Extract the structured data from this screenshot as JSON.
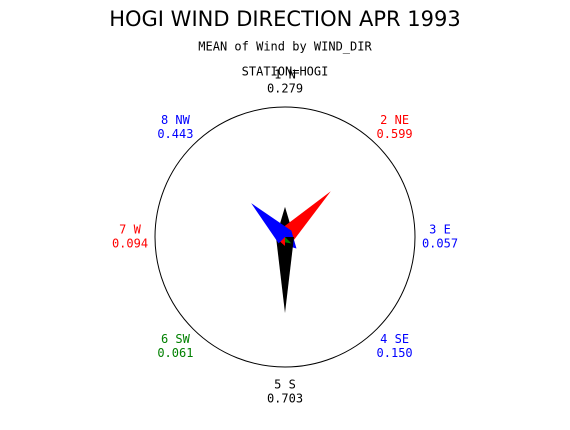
{
  "chart_data": {
    "type": "star",
    "title": "HOGI WIND DIRECTION APR 1993",
    "subtitle": "MEAN of Wind by WIND_DIR",
    "group_label": "STATION=HOGI",
    "categories": [
      "1 N",
      "2 NE",
      "3 E",
      "4 SE",
      "5 S",
      "6 SW",
      "7 W",
      "8 NW"
    ],
    "values": [
      0.279,
      0.599,
      0.057,
      0.15,
      0.703,
      0.061,
      0.094,
      0.443
    ],
    "value_labels": [
      "0.279",
      "0.599",
      "0.057",
      "0.150",
      "0.703",
      "0.061",
      "0.094",
      "0.443"
    ],
    "colors": [
      "#000000",
      "#ff0000",
      "#0000ff",
      "#0000ff",
      "#000000",
      "#008000",
      "#ff0000",
      "#0000ff"
    ]
  }
}
